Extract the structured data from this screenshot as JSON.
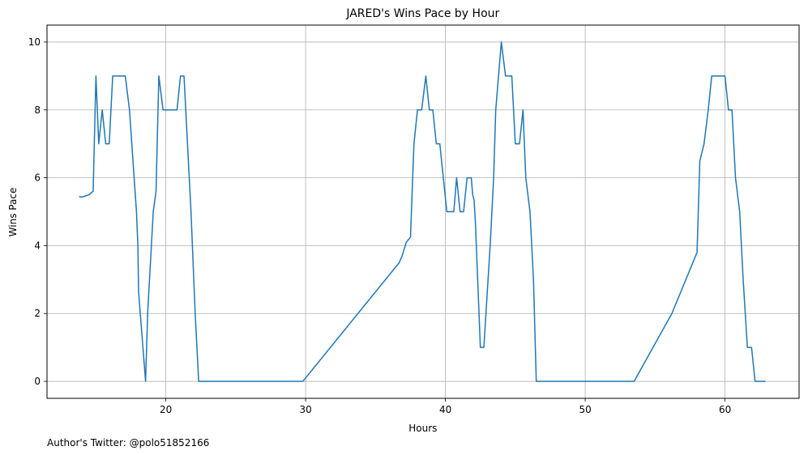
{
  "chart_data": {
    "type": "line",
    "title": "JARED's Wins Pace by Hour",
    "xlabel": "Hours",
    "ylabel": "Wins Pace",
    "xlim": [
      11.5,
      65.3
    ],
    "ylim": [
      -0.5,
      10.5
    ],
    "xticks": [
      20,
      30,
      40,
      50,
      60
    ],
    "yticks": [
      0,
      2,
      4,
      6,
      8,
      10
    ],
    "grid": true,
    "series": [
      {
        "color": "#1f77b4",
        "points": [
          [
            13.8,
            5.45
          ],
          [
            14.0,
            5.43
          ],
          [
            14.5,
            5.5
          ],
          [
            14.8,
            5.6
          ],
          [
            15.0,
            9.0
          ],
          [
            15.2,
            7.0
          ],
          [
            15.45,
            8.0
          ],
          [
            15.7,
            7.0
          ],
          [
            15.95,
            7.0
          ],
          [
            16.2,
            9.0
          ],
          [
            17.1,
            9.0
          ],
          [
            17.4,
            8.0
          ],
          [
            17.9,
            5.0
          ],
          [
            18.0,
            4.0
          ],
          [
            18.05,
            2.65
          ],
          [
            18.55,
            0.0
          ],
          [
            18.7,
            2.0
          ],
          [
            18.9,
            3.5
          ],
          [
            19.1,
            5.0
          ],
          [
            19.3,
            5.6
          ],
          [
            19.5,
            9.0
          ],
          [
            19.8,
            8.0
          ],
          [
            20.8,
            8.0
          ],
          [
            21.05,
            9.0
          ],
          [
            21.3,
            9.0
          ],
          [
            21.55,
            7.0
          ],
          [
            21.8,
            5.0
          ],
          [
            22.1,
            2.0
          ],
          [
            22.35,
            0.0
          ],
          [
            29.8,
            0.0
          ],
          [
            36.7,
            3.5
          ],
          [
            36.9,
            3.7
          ],
          [
            37.2,
            4.1
          ],
          [
            37.5,
            4.25
          ],
          [
            37.75,
            7.0
          ],
          [
            38.0,
            8.0
          ],
          [
            38.3,
            8.0
          ],
          [
            38.6,
            9.0
          ],
          [
            38.85,
            8.0
          ],
          [
            39.1,
            8.0
          ],
          [
            39.35,
            7.0
          ],
          [
            39.6,
            7.0
          ],
          [
            39.85,
            6.0
          ],
          [
            40.1,
            5.0
          ],
          [
            40.6,
            5.0
          ],
          [
            40.8,
            6.0
          ],
          [
            41.05,
            5.0
          ],
          [
            41.3,
            5.0
          ],
          [
            41.55,
            6.0
          ],
          [
            41.85,
            6.0
          ],
          [
            41.95,
            5.5
          ],
          [
            42.05,
            5.35
          ],
          [
            42.15,
            4.65
          ],
          [
            42.5,
            1.0
          ],
          [
            42.75,
            1.0
          ],
          [
            43.2,
            4.0
          ],
          [
            43.45,
            6.0
          ],
          [
            43.6,
            8.0
          ],
          [
            44.0,
            10.0
          ],
          [
            44.3,
            9.0
          ],
          [
            44.75,
            9.0
          ],
          [
            45.0,
            7.0
          ],
          [
            45.3,
            7.0
          ],
          [
            45.55,
            8.0
          ],
          [
            45.75,
            6.0
          ],
          [
            46.05,
            5.0
          ],
          [
            46.3,
            3.0
          ],
          [
            46.5,
            0.0
          ],
          [
            53.5,
            0.0
          ],
          [
            56.2,
            2.0
          ],
          [
            58.0,
            3.8
          ],
          [
            58.2,
            6.5
          ],
          [
            58.5,
            7.0
          ],
          [
            58.8,
            8.0
          ],
          [
            59.05,
            9.0
          ],
          [
            60.0,
            9.0
          ],
          [
            60.25,
            8.0
          ],
          [
            60.5,
            8.0
          ],
          [
            60.75,
            6.0
          ],
          [
            61.05,
            5.0
          ],
          [
            61.3,
            3.0
          ],
          [
            61.6,
            1.0
          ],
          [
            61.9,
            1.0
          ],
          [
            62.15,
            0.0
          ],
          [
            62.9,
            0.0
          ]
        ]
      }
    ]
  },
  "footnote": "Author's Twitter: @polo51852166"
}
